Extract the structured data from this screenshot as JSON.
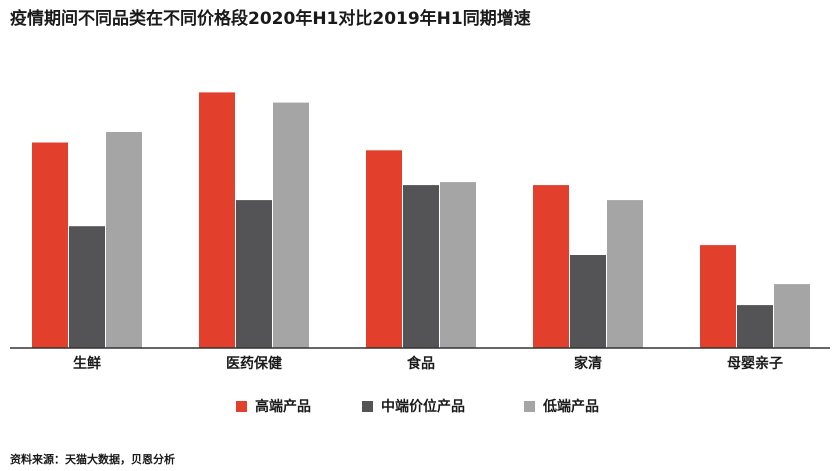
{
  "title": "疫情期间不同品类在不同价格段2020年H1对比2019年H1同期增速",
  "source": "资料来源：天猫大数据，贝恩分析",
  "chart_data": {
    "type": "bar",
    "title": "疫情期间不同品类在不同价格段2020年H1对比2019年H1同期增速",
    "categories": [
      "生鲜",
      "医药保健",
      "食品",
      "家清",
      "母婴亲子"
    ],
    "series": [
      {
        "name": "高端产品",
        "color": "#e2402c",
        "values": [
          68.5,
          85.2,
          65.9,
          54.3,
          34.3
        ]
      },
      {
        "name": "中端价位产品",
        "color": "#545456",
        "values": [
          40.6,
          49.3,
          54.3,
          31.0,
          14.3
        ]
      },
      {
        "name": "低端产品",
        "color": "#a6a5a6",
        "values": [
          72.0,
          81.8,
          55.3,
          49.3,
          21.3
        ]
      }
    ],
    "ylim": [
      0,
      100
    ],
    "grid": false,
    "legend": "bottom",
    "xlabel": "",
    "ylabel": ""
  }
}
